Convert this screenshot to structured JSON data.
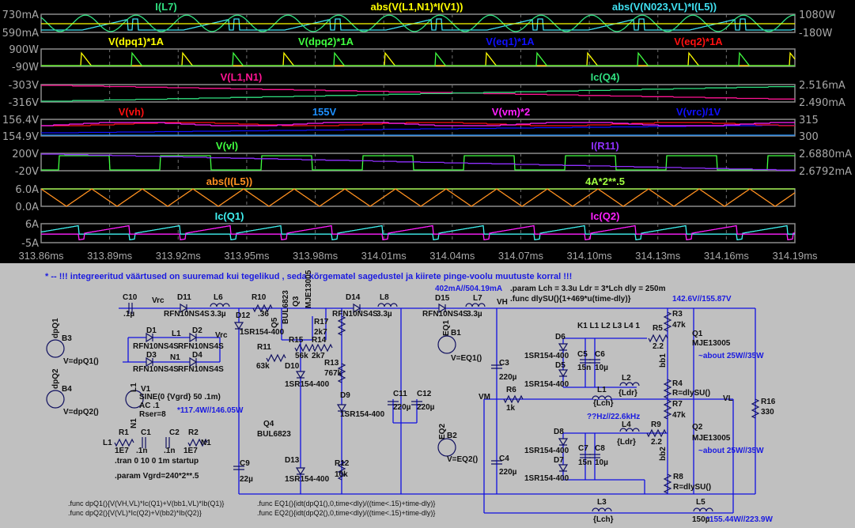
{
  "waveform": {
    "x_ticks": [
      "313.86ms",
      "313.89ms",
      "313.92ms",
      "313.95ms",
      "313.98ms",
      "314.01ms",
      "314.04ms",
      "314.07ms",
      "314.10ms",
      "314.13ms",
      "314.16ms",
      "314.19ms"
    ],
    "panes": [
      {
        "left_axis": [
          "730mA",
          "590mA"
        ],
        "right_axis": [
          "1080W",
          "-180W"
        ],
        "traces": [
          {
            "label": "I(L7)",
            "color": "#30e080"
          },
          {
            "label": "abs(V(L1,N1)*I(V1))",
            "color": "#ffff00"
          },
          {
            "label": "abs(V(N023,VL)*I(L5))",
            "color": "#40e0f0"
          }
        ]
      },
      {
        "left_axis": [
          "900W",
          "-90W"
        ],
        "right_axis": [],
        "traces": [
          {
            "label": "V(dpq1)*1A",
            "color": "#ffff00"
          },
          {
            "label": "V(dpq2)*1A",
            "color": "#40ff40"
          },
          {
            "label": "V(eq1)*1A",
            "color": "#1010ff"
          },
          {
            "label": "V(eq2)*1A",
            "color": "#ff1010"
          }
        ]
      },
      {
        "left_axis": [
          "-303V",
          "-316V"
        ],
        "right_axis": [
          "2.516mA",
          "2.490mA"
        ],
        "traces": [
          {
            "label": "V(L1,N1)",
            "color": "#ff1493"
          },
          {
            "label": "Ic(Q4)",
            "color": "#30e080"
          }
        ]
      },
      {
        "left_axis": [
          "156.4V",
          "154.9V"
        ],
        "right_axis": [
          "315",
          "300"
        ],
        "traces": [
          {
            "label": "V(vh)",
            "color": "#ff1010"
          },
          {
            "label": "155V",
            "color": "#1e90ff"
          },
          {
            "label": "V(vm)*2",
            "color": "#ff20ff"
          },
          {
            "label": "V(vrc)/1V",
            "color": "#1010ff"
          }
        ]
      },
      {
        "left_axis": [
          "200V",
          "-20V"
        ],
        "right_axis": [
          "2.6880mA",
          "2.6792mA"
        ],
        "traces": [
          {
            "label": "V(vl)",
            "color": "#40ff40"
          },
          {
            "label": "I(R11)",
            "color": "#9030ff"
          }
        ]
      },
      {
        "left_axis": [
          "6.0A",
          "0.0A"
        ],
        "right_axis": [],
        "traces": [
          {
            "label": "abs(I(L5))",
            "color": "#ff9020"
          },
          {
            "label": "4A*2**.5",
            "color": "#a0ff40"
          }
        ]
      },
      {
        "left_axis": [
          "6A",
          "-5A"
        ],
        "right_axis": [],
        "traces": [
          {
            "label": "Ic(Q1)",
            "color": "#40f0f0"
          },
          {
            "label": "Ic(Q2)",
            "color": "#ff20ff"
          }
        ]
      }
    ]
  },
  "schematic": {
    "note": "* -- !!! integreeritud väärtused on suuremad kui tegelikud , seda kõrgematel sagedustel ja kiirete pinge-voolu muutuste korral !!!",
    "labels": {
      "c10": "C10",
      "c10v": ".1µ",
      "vrc1": "Vrc",
      "d11": "D11",
      "d11v": "RFN10NS4S",
      "l6": "L6",
      "l6v": "3.3µ",
      "r10": "R10",
      "r10v": ".36",
      "d12": "D12",
      "d12v": "1SR154-400",
      "q3v": "BUL6823",
      "q3": "Q3",
      "q5v": "MJE13005",
      "q5": "Q5",
      "r17": "R17",
      "r17v": "2k7",
      "r15": "R15",
      "r15v": "56k",
      "r14": "R14",
      "r14v": "2k7",
      "r11": "R11",
      "r11v": "63k",
      "d10": "D10",
      "d10v": "1SR154-400",
      "r13": "R13",
      "r13v": "767k",
      "d14": "D14",
      "d14v": "RFN10NS4S",
      "l8": "L8",
      "l8v": "3.3µ",
      "d1": "D1",
      "d1v": "RFN10NS4S",
      "l1n": "L1",
      "d2": "D2",
      "d2v": "RFN10NS4S",
      "vrc2": "Vrc",
      "d3": "D3",
      "d3v": "RFN10NS4S",
      "n1n": "N1",
      "d4": "D4",
      "d4v": "RFN10NS4S",
      "b3": "B3",
      "b3n": "dpQ1",
      "b3v": "V=dpQ1()",
      "b4": "B4",
      "b4n": "dpQ2",
      "b4v": "V=dpQ2()",
      "v1": "V1",
      "v1n": "L1",
      "v1a": "SINE(0 {Vgrd} 50 .1m)",
      "v1b": "AC .1",
      "v1c": "Rser=8",
      "v1n2": "N1",
      "r1": "R1",
      "c1": "C1",
      "c2": "C2",
      "r2": "R2",
      "l1x": "L1",
      "n1x": "N1",
      "r1v": "1E7",
      "c1v": ".1n",
      "c2v": ".1n",
      "r2v": "1E7",
      "tran": ".tran 0 10 0 1m startup",
      "param1": ".param Vgrd=240*2**.5",
      "q4": "Q4",
      "q4v": "BUL6823",
      "c9": "C9",
      "c9v": "22µ",
      "d13": "D13",
      "d13v": "1SR154-400",
      "d9": "D9",
      "d9v": "1SR154-400",
      "r12": "R12",
      "r12v": "10k",
      "func1": ".func dpQ1(){V(VH,VL)*Ic(Q1)+V(bb1,VL)*Ib(Q1)}",
      "func2": ".func dpQ2(){V(VL)*Ic(Q2)+V(bb2)*Ib(Q2)}",
      "func3": ".func EQ1(){idt(dpQ1(),0,time<dly)/((time<.15)+time-dly)}",
      "func4": ".func EQ2(){idt(dpQ2(),0,time<dly)/((time<.15)+time-dly)}",
      "c11": "C11",
      "c11v": "220µ",
      "c12": "C12",
      "c12v": "220µ",
      "d15": "D15",
      "d15v": "RFN10NS4S",
      "l7": "L7",
      "l7v": "3.3µ",
      "vh": "VH",
      "param2": ".param Lch = 3.3u Ldr = 3*Lch dly = 250m",
      "func5": ".func dlySU(){1+469*u(time-dly)}",
      "b1": "B1",
      "b1n": "EQ1",
      "b1v": "V=EQ1()",
      "k1": "K1 L1 L2 L3 L4 1",
      "d6": "D6",
      "d6v": "1SR154-400",
      "d5": "D5",
      "d5v": "1SR154-400",
      "c5": "C5",
      "c5v": "15n",
      "c6": "C6",
      "c6v": "10µ",
      "c3": "C3",
      "c3v": "220µ",
      "r5": "R5",
      "r5v": "2.2",
      "r3": "R3",
      "r3v": "47k",
      "q1": "Q1",
      "q1v": "MJE13005",
      "bb1": "bb1",
      "l2": "L2",
      "l2v": "{Ldr}",
      "r4": "R4",
      "r4v": "R=dlySU()",
      "vl": "VL",
      "l1": "L1",
      "l1v": "{Lch}",
      "vm": "VM",
      "r6": "R6",
      "r6v": "1k",
      "r7": "R7",
      "r7v": "47k",
      "r16": "R16",
      "r16v": "330",
      "l4": "L4",
      "l4v": "{Ldr}",
      "r9": "R9",
      "r9v": "2.2",
      "q2": "Q2",
      "q2v": "MJE13005",
      "bb2": "bb2",
      "d8": "D8",
      "d8v": "1SR154-400",
      "d7": "D7",
      "d7v": "1SR154-400",
      "c7": "C7",
      "c7v": "15n",
      "c8": "C8",
      "c8v": "10µ",
      "c4": "C4",
      "c4v": "220µ",
      "r8": "R8",
      "r8v": "R=dlySU()",
      "b2": "B2",
      "b2n": "EQ2",
      "b2v": "V=EQ2()",
      "l3": "L3",
      "l3v": "{Lch}",
      "l5": "L5",
      "l5v": "150µ"
    },
    "annotations": {
      "a1": "402mA//504.19mA",
      "a2": "142.6V//155.87V",
      "a3": "*117.4W//146.05W",
      "a4": "~about 25W//35W",
      "a5": "??Hz//22.6kHz",
      "a6": "~about 25W//35W",
      "a7": "*155.44W//223.9W"
    }
  }
}
